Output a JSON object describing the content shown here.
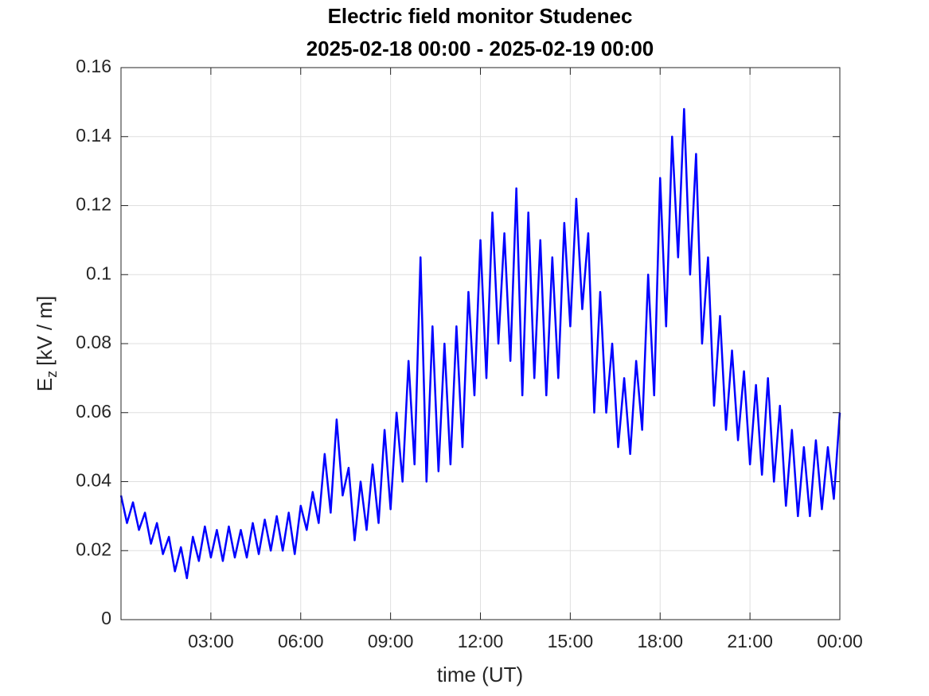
{
  "chart_data": {
    "type": "line",
    "title": [
      "Electric field monitor Studenec",
      "2025-02-18 00:00 - 2025-02-19 00:00"
    ],
    "xlabel": "time (UT)",
    "ylabel": {
      "main": "E",
      "sub": "z",
      "unit": "[kV / m]"
    },
    "color": "#0000ff",
    "grid": true,
    "xlim": [
      0,
      24
    ],
    "xticks": [
      {
        "value": 3,
        "label": "03:00"
      },
      {
        "value": 6,
        "label": "06:00"
      },
      {
        "value": 9,
        "label": "09:00"
      },
      {
        "value": 12,
        "label": "12:00"
      },
      {
        "value": 15,
        "label": "15:00"
      },
      {
        "value": 18,
        "label": "18:00"
      },
      {
        "value": 21,
        "label": "21:00"
      },
      {
        "value": 24,
        "label": "00:00"
      }
    ],
    "ylim": [
      0,
      0.16
    ],
    "yticks": [
      0,
      0.02,
      0.04,
      0.06,
      0.08,
      0.1,
      0.12,
      0.14,
      0.16
    ],
    "x": [
      0,
      0.2,
      0.4,
      0.6,
      0.8,
      1,
      1.2,
      1.4,
      1.6,
      1.8,
      2,
      2.2,
      2.4,
      2.6,
      2.8,
      3,
      3.2,
      3.4,
      3.6,
      3.8,
      4,
      4.2,
      4.4,
      4.6,
      4.8,
      5,
      5.2,
      5.4,
      5.6,
      5.8,
      6,
      6.2,
      6.4,
      6.6,
      6.8,
      7,
      7.2,
      7.4,
      7.6,
      7.8,
      8,
      8.2,
      8.4,
      8.6,
      8.8,
      9,
      9.2,
      9.4,
      9.6,
      9.8,
      10,
      10.2,
      10.4,
      10.6,
      10.8,
      11,
      11.2,
      11.4,
      11.6,
      11.8,
      12,
      12.2,
      12.4,
      12.6,
      12.8,
      13,
      13.2,
      13.4,
      13.6,
      13.8,
      14,
      14.2,
      14.4,
      14.6,
      14.8,
      15,
      15.2,
      15.4,
      15.6,
      15.8,
      16,
      16.2,
      16.4,
      16.6,
      16.8,
      17,
      17.2,
      17.4,
      17.6,
      17.8,
      18,
      18.2,
      18.4,
      18.6,
      18.8,
      19,
      19.2,
      19.4,
      19.6,
      19.8,
      20,
      20.2,
      20.4,
      20.6,
      20.8,
      21,
      21.2,
      21.4,
      21.6,
      21.8,
      22,
      22.2,
      22.4,
      22.6,
      22.8,
      23,
      23.2,
      23.4,
      23.6,
      23.8,
      24
    ],
    "values": [
      0.036,
      0.028,
      0.034,
      0.026,
      0.031,
      0.022,
      0.028,
      0.019,
      0.024,
      0.014,
      0.021,
      0.012,
      0.024,
      0.017,
      0.027,
      0.018,
      0.026,
      0.017,
      0.027,
      0.018,
      0.026,
      0.018,
      0.028,
      0.019,
      0.029,
      0.02,
      0.03,
      0.02,
      0.031,
      0.019,
      0.033,
      0.026,
      0.037,
      0.028,
      0.048,
      0.031,
      0.058,
      0.036,
      0.044,
      0.023,
      0.04,
      0.026,
      0.045,
      0.028,
      0.055,
      0.032,
      0.06,
      0.04,
      0.075,
      0.045,
      0.105,
      0.04,
      0.085,
      0.043,
      0.08,
      0.045,
      0.085,
      0.05,
      0.095,
      0.065,
      0.11,
      0.07,
      0.118,
      0.08,
      0.112,
      0.075,
      0.125,
      0.065,
      0.118,
      0.07,
      0.11,
      0.065,
      0.105,
      0.07,
      0.115,
      0.085,
      0.122,
      0.09,
      0.112,
      0.06,
      0.095,
      0.06,
      0.08,
      0.05,
      0.07,
      0.048,
      0.075,
      0.055,
      0.1,
      0.065,
      0.128,
      0.085,
      0.14,
      0.105,
      0.148,
      0.1,
      0.135,
      0.08,
      0.105,
      0.062,
      0.088,
      0.055,
      0.078,
      0.052,
      0.072,
      0.045,
      0.068,
      0.042,
      0.07,
      0.04,
      0.062,
      0.033,
      0.055,
      0.03,
      0.05,
      0.03,
      0.052,
      0.032,
      0.05,
      0.035,
      0.06
    ]
  }
}
